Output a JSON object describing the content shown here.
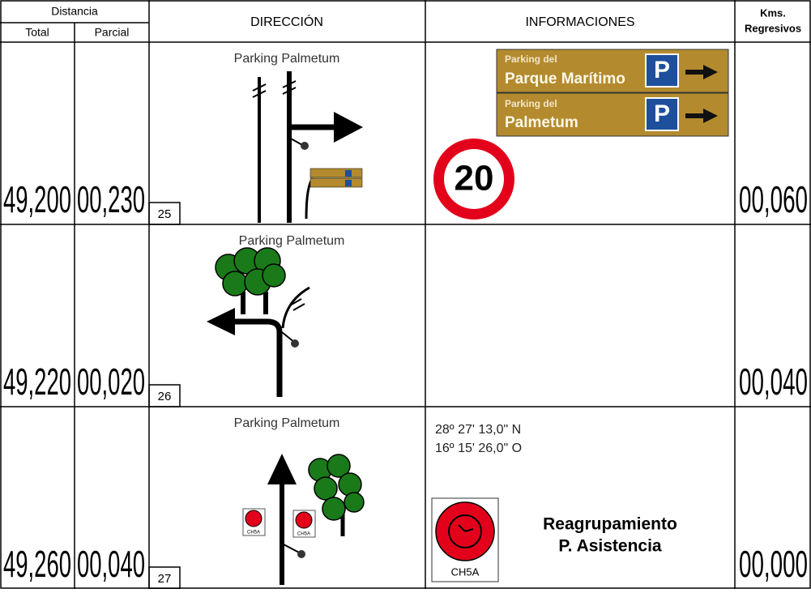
{
  "header": {
    "distancia": "Distancia",
    "total": "Total",
    "parcial": "Parcial",
    "direccion": "DIRECCIÓN",
    "informaciones": "INFORMACIONES",
    "kms": [
      "Kms.",
      "Regresivos"
    ]
  },
  "rows": [
    {
      "total": "49,200",
      "parcial": "00,230",
      "number": "25",
      "direction_label": "Parking Palmetum",
      "kms": "00,060",
      "info": {
        "signs": [
          {
            "line1": "Parking del",
            "line2": "Parque Marítimo",
            "symbol": "P"
          },
          {
            "line1": "Parking del",
            "line2": "Palmetum",
            "symbol": "P"
          }
        ],
        "speed_limit": "20"
      }
    },
    {
      "total": "49,220",
      "parcial": "00,020",
      "number": "26",
      "direction_label": "Parking Palmetum",
      "kms": "00,040"
    },
    {
      "total": "49,260",
      "parcial": "00,040",
      "number": "27",
      "direction_label": "Parking Palmetum",
      "kms": "00,000",
      "info": {
        "coordinates": [
          "28º 27' 13,0\" N",
          "16º 15' 26,0\" O"
        ],
        "small_signs": [
          "CH5A",
          "CH5A"
        ],
        "sign_label": "CH5A",
        "text": [
          "Reagrupamiento",
          "P. Asistencia"
        ]
      }
    }
  ]
}
